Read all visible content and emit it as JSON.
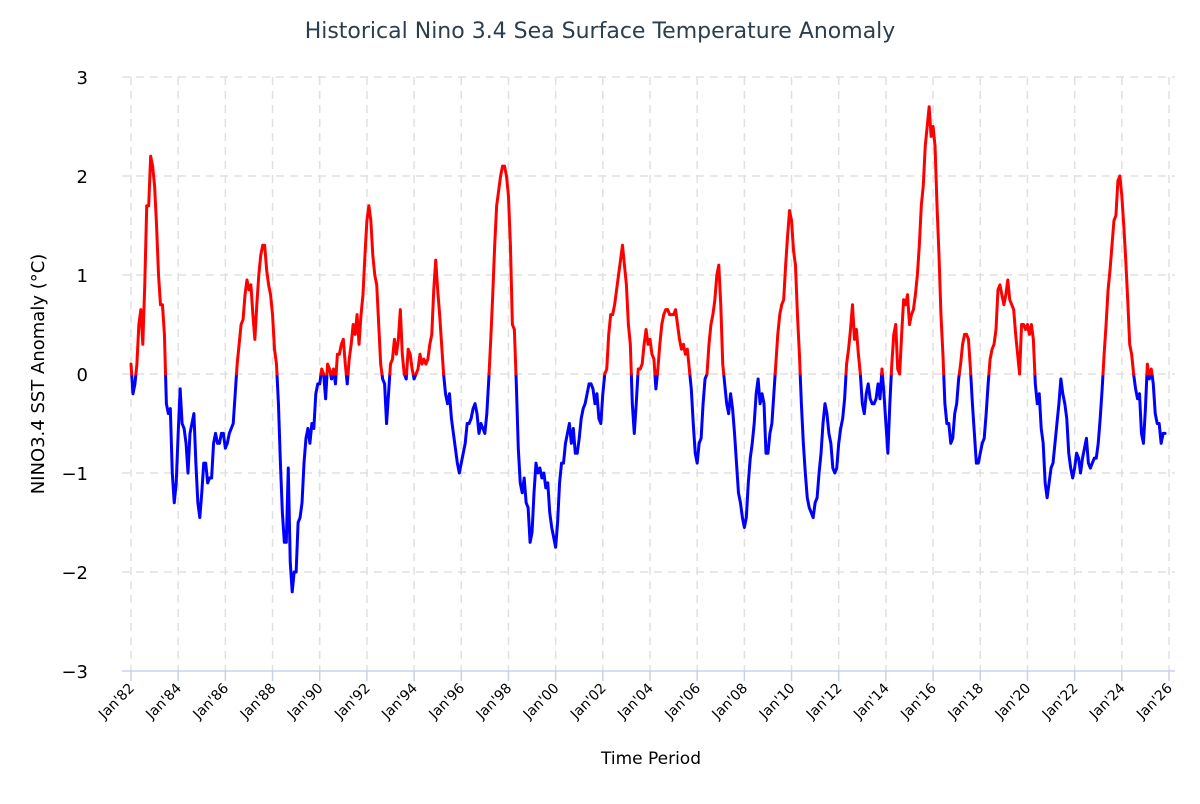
{
  "chart_data": {
    "type": "line",
    "title": "Historical Nino 3.4 Sea Surface Temperature Anomaly",
    "xlabel": "Time Period",
    "ylabel": "NINO3.4 SST Anomaly (°C)",
    "ylim": [
      -3,
      3
    ],
    "yticks": [
      "3",
      "2",
      "1",
      "0",
      "−1",
      "−2",
      "−3"
    ],
    "xlim": [
      "1982-01",
      "2026-01"
    ],
    "xticks": [
      "Jan'82",
      "Jan'84",
      "Jan'86",
      "Jan'88",
      "Jan'90",
      "Jan'92",
      "Jan'94",
      "Jan'96",
      "Jan'98",
      "Jan'00",
      "Jan'02",
      "Jan'04",
      "Jan'06",
      "Jan'08",
      "Jan'10",
      "Jan'12",
      "Jan'14",
      "Jan'16",
      "Jan'18",
      "Jan'20",
      "Jan'22",
      "Jan'24",
      "Jan'26"
    ],
    "grid": true,
    "legend": "none",
    "colors": {
      "positive": "#ff0000",
      "negative": "#0000ff",
      "title": "#2b3e4d",
      "grid": "#e0e0e0",
      "axis": "#c8d2e6"
    },
    "monthly_values_by_year": {
      "1982": [
        0.1,
        -0.2,
        -0.1,
        0.1,
        0.5,
        0.65,
        0.3,
        0.9,
        1.7,
        1.7,
        2.2,
        2.1
      ],
      "1983": [
        1.9,
        1.5,
        1.0,
        0.7,
        0.7,
        0.4,
        -0.3,
        -0.4,
        -0.35,
        -1.0,
        -1.3,
        -1.1
      ],
      "1984": [
        -0.6,
        -0.15,
        -0.5,
        -0.55,
        -0.7,
        -1.0,
        -0.6,
        -0.5,
        -0.4,
        -0.9,
        -1.3,
        -1.45
      ],
      "1985": [
        -1.2,
        -0.9,
        -0.9,
        -1.1,
        -1.05,
        -1.05,
        -0.7,
        -0.6,
        -0.7,
        -0.7,
        -0.6,
        -0.6
      ],
      "1986": [
        -0.75,
        -0.7,
        -0.6,
        -0.55,
        -0.5,
        -0.2,
        0.1,
        0.3,
        0.5,
        0.55,
        0.8,
        0.95
      ],
      "1987": [
        0.85,
        0.9,
        0.6,
        0.35,
        0.7,
        1.0,
        1.2,
        1.3,
        1.3,
        1.05,
        0.9,
        0.8
      ],
      "1988": [
        0.6,
        0.25,
        0.1,
        -0.3,
        -0.9,
        -1.4,
        -1.7,
        -1.7,
        -0.95,
        -1.9,
        -2.2,
        -2.0
      ],
      "1989": [
        -2.0,
        -1.5,
        -1.45,
        -1.3,
        -0.9,
        -0.65,
        -0.55,
        -0.7,
        -0.5,
        -0.55,
        -0.2,
        -0.1
      ],
      "1990": [
        -0.1,
        0.05,
        0.0,
        -0.25,
        0.1,
        0.05,
        -0.05,
        0.05,
        -0.1,
        0.2,
        0.2,
        0.3
      ],
      "1991": [
        0.35,
        0.1,
        -0.1,
        0.15,
        0.3,
        0.5,
        0.4,
        0.6,
        0.3,
        0.6,
        0.8,
        1.2
      ],
      "1992": [
        1.55,
        1.7,
        1.55,
        1.2,
        1.0,
        0.9,
        0.5,
        0.1,
        -0.05,
        -0.1,
        -0.5,
        -0.2
      ],
      "1993": [
        0.1,
        0.15,
        0.35,
        0.2,
        0.35,
        0.65,
        0.2,
        0.0,
        -0.05,
        0.25,
        0.2,
        0.05
      ],
      "1994": [
        -0.05,
        0.0,
        0.05,
        0.2,
        0.1,
        0.15,
        0.1,
        0.15,
        0.3,
        0.4,
        0.85,
        1.15
      ],
      "1995": [
        0.85,
        0.6,
        0.3,
        0.0,
        -0.2,
        -0.3,
        -0.2,
        -0.45,
        -0.6,
        -0.75,
        -0.9,
        -1.0
      ],
      "1996": [
        -0.9,
        -0.8,
        -0.7,
        -0.5,
        -0.5,
        -0.45,
        -0.35,
        -0.3,
        -0.4,
        -0.6,
        -0.5,
        -0.55
      ],
      "1997": [
        -0.6,
        -0.4,
        -0.05,
        0.35,
        0.8,
        1.3,
        1.7,
        1.85,
        2.0,
        2.1,
        2.1,
        2.0
      ],
      "1998": [
        1.8,
        1.3,
        0.5,
        0.45,
        -0.1,
        -0.75,
        -1.1,
        -1.2,
        -1.05,
        -1.3,
        -1.35,
        -1.7
      ],
      "1999": [
        -1.6,
        -1.2,
        -0.9,
        -1.0,
        -0.95,
        -1.05,
        -1.0,
        -1.15,
        -1.1,
        -1.4,
        -1.55,
        -1.65
      ],
      "2000": [
        -1.75,
        -1.5,
        -1.1,
        -0.9,
        -0.9,
        -0.7,
        -0.6,
        -0.5,
        -0.7,
        -0.55,
        -0.8,
        -0.8
      ],
      "2001": [
        -0.65,
        -0.45,
        -0.35,
        -0.3,
        -0.2,
        -0.1,
        -0.1,
        -0.15,
        -0.3,
        -0.2,
        -0.45,
        -0.5
      ],
      "2002": [
        -0.2,
        0.0,
        0.05,
        0.4,
        0.6,
        0.6,
        0.7,
        0.85,
        1.0,
        1.15,
        1.3,
        1.1
      ],
      "2003": [
        0.9,
        0.5,
        0.3,
        -0.3,
        -0.6,
        -0.3,
        0.05,
        0.05,
        0.1,
        0.3,
        0.45,
        0.3
      ],
      "2004": [
        0.35,
        0.2,
        0.15,
        -0.15,
        0.05,
        0.3,
        0.5,
        0.6,
        0.65,
        0.65,
        0.6,
        0.6
      ],
      "2005": [
        0.6,
        0.65,
        0.5,
        0.35,
        0.25,
        0.3,
        0.2,
        0.25,
        0.05,
        -0.15,
        -0.5,
        -0.8
      ],
      "2006": [
        -0.9,
        -0.7,
        -0.65,
        -0.3,
        -0.05,
        0.0,
        0.3,
        0.5,
        0.6,
        0.75,
        1.0,
        1.1
      ],
      "2007": [
        0.7,
        0.1,
        -0.1,
        -0.3,
        -0.4,
        -0.2,
        -0.35,
        -0.6,
        -0.9,
        -1.2,
        -1.3,
        -1.45
      ],
      "2008": [
        -1.55,
        -1.45,
        -1.1,
        -0.85,
        -0.7,
        -0.5,
        -0.2,
        -0.05,
        -0.3,
        -0.2,
        -0.3,
        -0.8
      ],
      "2009": [
        -0.8,
        -0.6,
        -0.5,
        -0.2,
        0.1,
        0.4,
        0.6,
        0.7,
        0.75,
        1.1,
        1.4,
        1.65
      ],
      "2010": [
        1.55,
        1.25,
        1.1,
        0.6,
        0.2,
        -0.3,
        -0.7,
        -1.0,
        -1.25,
        -1.35,
        -1.4,
        -1.45
      ],
      "2011": [
        -1.3,
        -1.25,
        -1.0,
        -0.8,
        -0.5,
        -0.3,
        -0.4,
        -0.6,
        -0.7,
        -0.95,
        -1.0,
        -0.95
      ],
      "2012": [
        -0.7,
        -0.55,
        -0.45,
        -0.25,
        0.1,
        0.25,
        0.45,
        0.7,
        0.35,
        0.45,
        0.2,
        0.0
      ],
      "2013": [
        -0.3,
        -0.4,
        -0.2,
        -0.1,
        -0.25,
        -0.3,
        -0.3,
        -0.25,
        -0.1,
        -0.25,
        0.05,
        -0.2
      ],
      "2014": [
        -0.5,
        -0.8,
        -0.3,
        0.1,
        0.4,
        0.5,
        0.05,
        0.0,
        0.4,
        0.75,
        0.7,
        0.8
      ],
      "2015": [
        0.5,
        0.6,
        0.65,
        0.8,
        1.0,
        1.3,
        1.7,
        1.9,
        2.3,
        2.5,
        2.7,
        2.4
      ],
      "2016": [
        2.5,
        2.3,
        1.7,
        1.2,
        0.6,
        0.2,
        -0.3,
        -0.5,
        -0.5,
        -0.7,
        -0.65,
        -0.4
      ],
      "2017": [
        -0.3,
        -0.05,
        0.1,
        0.3,
        0.4,
        0.4,
        0.35,
        0.05,
        -0.3,
        -0.6,
        -0.9,
        -0.9
      ],
      "2018": [
        -0.8,
        -0.7,
        -0.65,
        -0.4,
        -0.1,
        0.15,
        0.25,
        0.3,
        0.45,
        0.85,
        0.9,
        0.8
      ],
      "2019": [
        0.7,
        0.8,
        0.95,
        0.75,
        0.7,
        0.65,
        0.4,
        0.2,
        0.0,
        0.5,
        0.5,
        0.45
      ],
      "2020": [
        0.5,
        0.4,
        0.5,
        0.35,
        -0.1,
        -0.3,
        -0.2,
        -0.55,
        -0.7,
        -1.1,
        -1.25,
        -1.1
      ],
      "2021": [
        -0.95,
        -0.9,
        -0.7,
        -0.5,
        -0.3,
        -0.05,
        -0.2,
        -0.3,
        -0.45,
        -0.8,
        -0.95,
        -1.05
      ],
      "2022": [
        -0.95,
        -0.8,
        -0.85,
        -1.0,
        -0.85,
        -0.75,
        -0.65,
        -0.9,
        -0.95,
        -0.9,
        -0.85,
        -0.85
      ],
      "2023": [
        -0.7,
        -0.45,
        -0.15,
        0.2,
        0.5,
        0.85,
        1.05,
        1.3,
        1.55,
        1.6,
        1.95,
        2.0
      ],
      "2024": [
        1.8,
        1.5,
        1.15,
        0.75,
        0.3,
        0.2,
        0.0,
        -0.15,
        -0.25,
        -0.2,
        -0.6,
        -0.7
      ],
      "2025": [
        -0.35,
        0.1,
        -0.05,
        0.05,
        -0.1,
        -0.4,
        -0.5,
        -0.5,
        -0.7,
        -0.6,
        -0.6
      ]
    }
  }
}
